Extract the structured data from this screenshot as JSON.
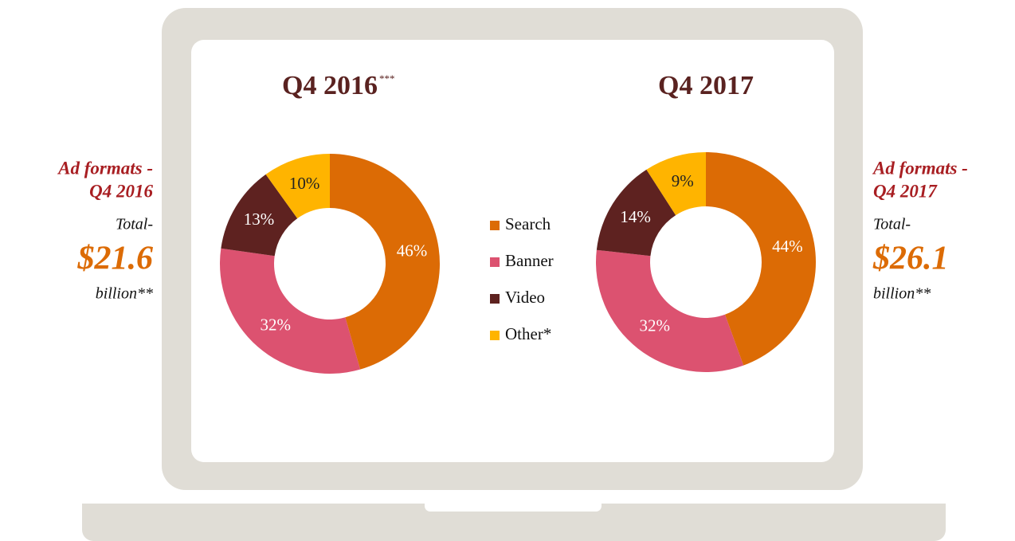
{
  "chart_data": [
    {
      "type": "donut",
      "title": "Q4 2016",
      "title_note": "***",
      "categories": [
        "Search",
        "Banner",
        "Video",
        "Other*"
      ],
      "values": [
        46,
        32,
        13,
        10
      ],
      "value_labels": [
        "46%",
        "32%",
        "13%",
        "10%"
      ],
      "colors": [
        "#dc6b05",
        "#dc5270",
        "#5e2220",
        "#ffb400"
      ],
      "annotations": [
        "Ad formats -",
        "Q4 2016",
        "Total-",
        "$21.6",
        "billion**"
      ]
    },
    {
      "type": "donut",
      "title": "Q4 2017",
      "categories": [
        "Search",
        "Banner",
        "Video",
        "Other*"
      ],
      "values": [
        44,
        32,
        14,
        9
      ],
      "value_labels": [
        "44%",
        "32%",
        "14%",
        "9%"
      ],
      "colors": [
        "#dc6b05",
        "#dc5270",
        "#5e2220",
        "#ffb400"
      ],
      "annotations": [
        "Ad formats -",
        "Q4 2017",
        "Total-",
        "$26.1",
        "billion**"
      ]
    }
  ]
}
